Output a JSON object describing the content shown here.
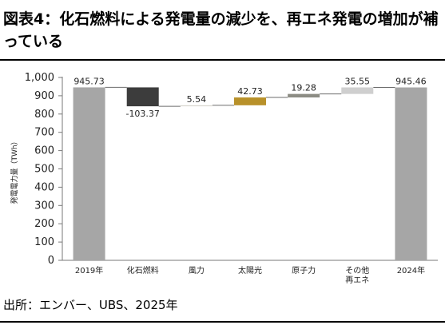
{
  "title": "図表4：化石燃料による発電量の減少を、再エネ発電の増加が補っている",
  "source": "出所：エンバー、UBS、2025年",
  "chart_data": {
    "type": "waterfall",
    "title": "",
    "ylabel": "発電電力量（TWh）",
    "ylim": [
      0,
      1000
    ],
    "yticks": [
      "0",
      "100",
      "200",
      "300",
      "400",
      "500",
      "600",
      "700",
      "800",
      "900",
      "1,000"
    ],
    "categories": [
      "2019年",
      "化石燃料",
      "風力",
      "太陽光",
      "原子力",
      "その他\n再エネ",
      "2024年"
    ],
    "values": [
      945.73,
      -103.37,
      5.54,
      42.73,
      19.28,
      35.55,
      945.46
    ],
    "value_labels": [
      "945.73",
      "-103.37",
      "5.54",
      "42.73",
      "19.28",
      "35.55",
      "945.46"
    ],
    "kinds": [
      "total",
      "delta",
      "delta",
      "delta",
      "delta",
      "delta",
      "total"
    ],
    "colors": [
      "#a6a6a6",
      "#3c3c3c",
      "#d9d7cf",
      "#b8912a",
      "#8c8c84",
      "#cfcfcf",
      "#a6a6a6"
    ],
    "connector_color": "#6e6e6e",
    "grid": false,
    "legend": "none"
  }
}
